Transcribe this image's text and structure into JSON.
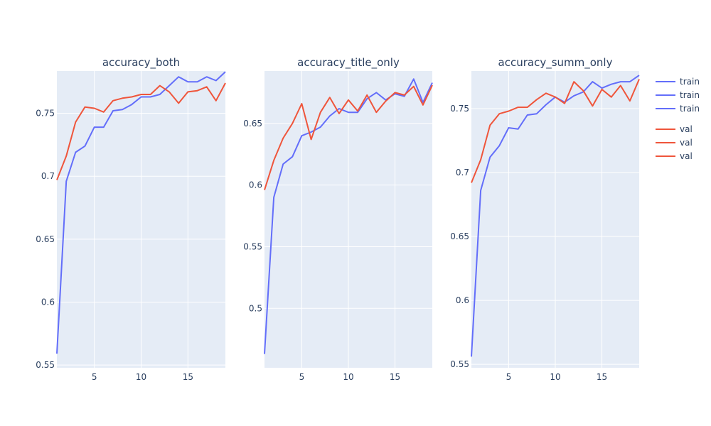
{
  "chart_data": {
    "type": "line",
    "colors": {
      "train": "#636EFA",
      "val": "#EF553B"
    },
    "legend": {
      "placement": "right",
      "entries": [
        {
          "label": "train",
          "color": "#636EFA"
        },
        {
          "label": "train",
          "color": "#636EFA"
        },
        {
          "label": "train",
          "color": "#636EFA"
        },
        {
          "label": "val",
          "color": "#EF553B"
        },
        {
          "label": "val",
          "color": "#EF553B"
        },
        {
          "label": "val",
          "color": "#EF553B"
        }
      ]
    },
    "subplots": [
      {
        "title": "accuracy_both",
        "xlim": [
          1,
          19
        ],
        "ylim": [
          0.5478,
          0.7836
        ],
        "xticks": [
          5,
          10,
          15
        ],
        "yticks": [
          0.55,
          0.6,
          0.65,
          0.7,
          0.75
        ],
        "ytick_labels": [
          "0.55",
          "0.6",
          "0.65",
          "0.7",
          "0.75"
        ],
        "grid": true,
        "x": [
          1,
          2,
          3,
          4,
          5,
          6,
          7,
          8,
          9,
          10,
          11,
          12,
          13,
          14,
          15,
          16,
          17,
          18,
          19
        ],
        "series": [
          {
            "name": "train",
            "values": [
              0.559,
              0.696,
              0.719,
              0.724,
              0.739,
              0.739,
              0.752,
              0.753,
              0.757,
              0.763,
              0.763,
              0.765,
              0.772,
              0.779,
              0.775,
              0.775,
              0.779,
              0.776,
              0.783
            ]
          },
          {
            "name": "val",
            "values": [
              0.697,
              0.716,
              0.743,
              0.755,
              0.754,
              0.751,
              0.76,
              0.762,
              0.763,
              0.765,
              0.765,
              0.772,
              0.767,
              0.758,
              0.767,
              0.768,
              0.771,
              0.76,
              0.774
            ]
          }
        ]
      },
      {
        "title": "accuracy_title_only",
        "xlim": [
          1,
          19
        ],
        "ylim": [
          0.4518,
          0.6925
        ],
        "xticks": [
          5,
          10,
          15
        ],
        "yticks": [
          0.5,
          0.55,
          0.6,
          0.65
        ],
        "ytick_labels": [
          "0.5",
          "0.55",
          "0.6",
          "0.65"
        ],
        "grid": true,
        "x": [
          1,
          2,
          3,
          4,
          5,
          6,
          7,
          8,
          9,
          10,
          11,
          12,
          13,
          14,
          15,
          16,
          17,
          18,
          19
        ],
        "series": [
          {
            "name": "train",
            "values": [
              0.463,
              0.59,
              0.617,
              0.623,
              0.64,
              0.643,
              0.647,
              0.656,
              0.662,
              0.659,
              0.659,
              0.67,
              0.675,
              0.669,
              0.674,
              0.672,
              0.686,
              0.667,
              0.683
            ]
          },
          {
            "name": "val",
            "values": [
              0.596,
              0.62,
              0.638,
              0.65,
              0.666,
              0.637,
              0.659,
              0.671,
              0.658,
              0.669,
              0.66,
              0.673,
              0.659,
              0.668,
              0.675,
              0.673,
              0.68,
              0.665,
              0.681
            ]
          }
        ]
      },
      {
        "title": "accuracy_summ_only",
        "xlim": [
          1,
          19
        ],
        "ylim": [
          0.5473,
          0.7794
        ],
        "xticks": [
          5,
          10,
          15
        ],
        "yticks": [
          0.55,
          0.6,
          0.65,
          0.7,
          0.75
        ],
        "ytick_labels": [
          "0.55",
          "0.6",
          "0.65",
          "0.7",
          "0.75"
        ],
        "grid": true,
        "x": [
          1,
          2,
          3,
          4,
          5,
          6,
          7,
          8,
          9,
          10,
          11,
          12,
          13,
          14,
          15,
          16,
          17,
          18,
          19
        ],
        "series": [
          {
            "name": "train",
            "values": [
              0.556,
              0.686,
              0.712,
              0.721,
              0.735,
              0.734,
              0.745,
              0.746,
              0.753,
              0.759,
              0.755,
              0.76,
              0.763,
              0.771,
              0.766,
              0.769,
              0.771,
              0.771,
              0.776
            ]
          },
          {
            "name": "val",
            "values": [
              0.692,
              0.71,
              0.737,
              0.746,
              0.748,
              0.751,
              0.751,
              0.757,
              0.762,
              0.759,
              0.754,
              0.771,
              0.764,
              0.752,
              0.765,
              0.759,
              0.768,
              0.756,
              0.773
            ]
          }
        ]
      }
    ]
  }
}
